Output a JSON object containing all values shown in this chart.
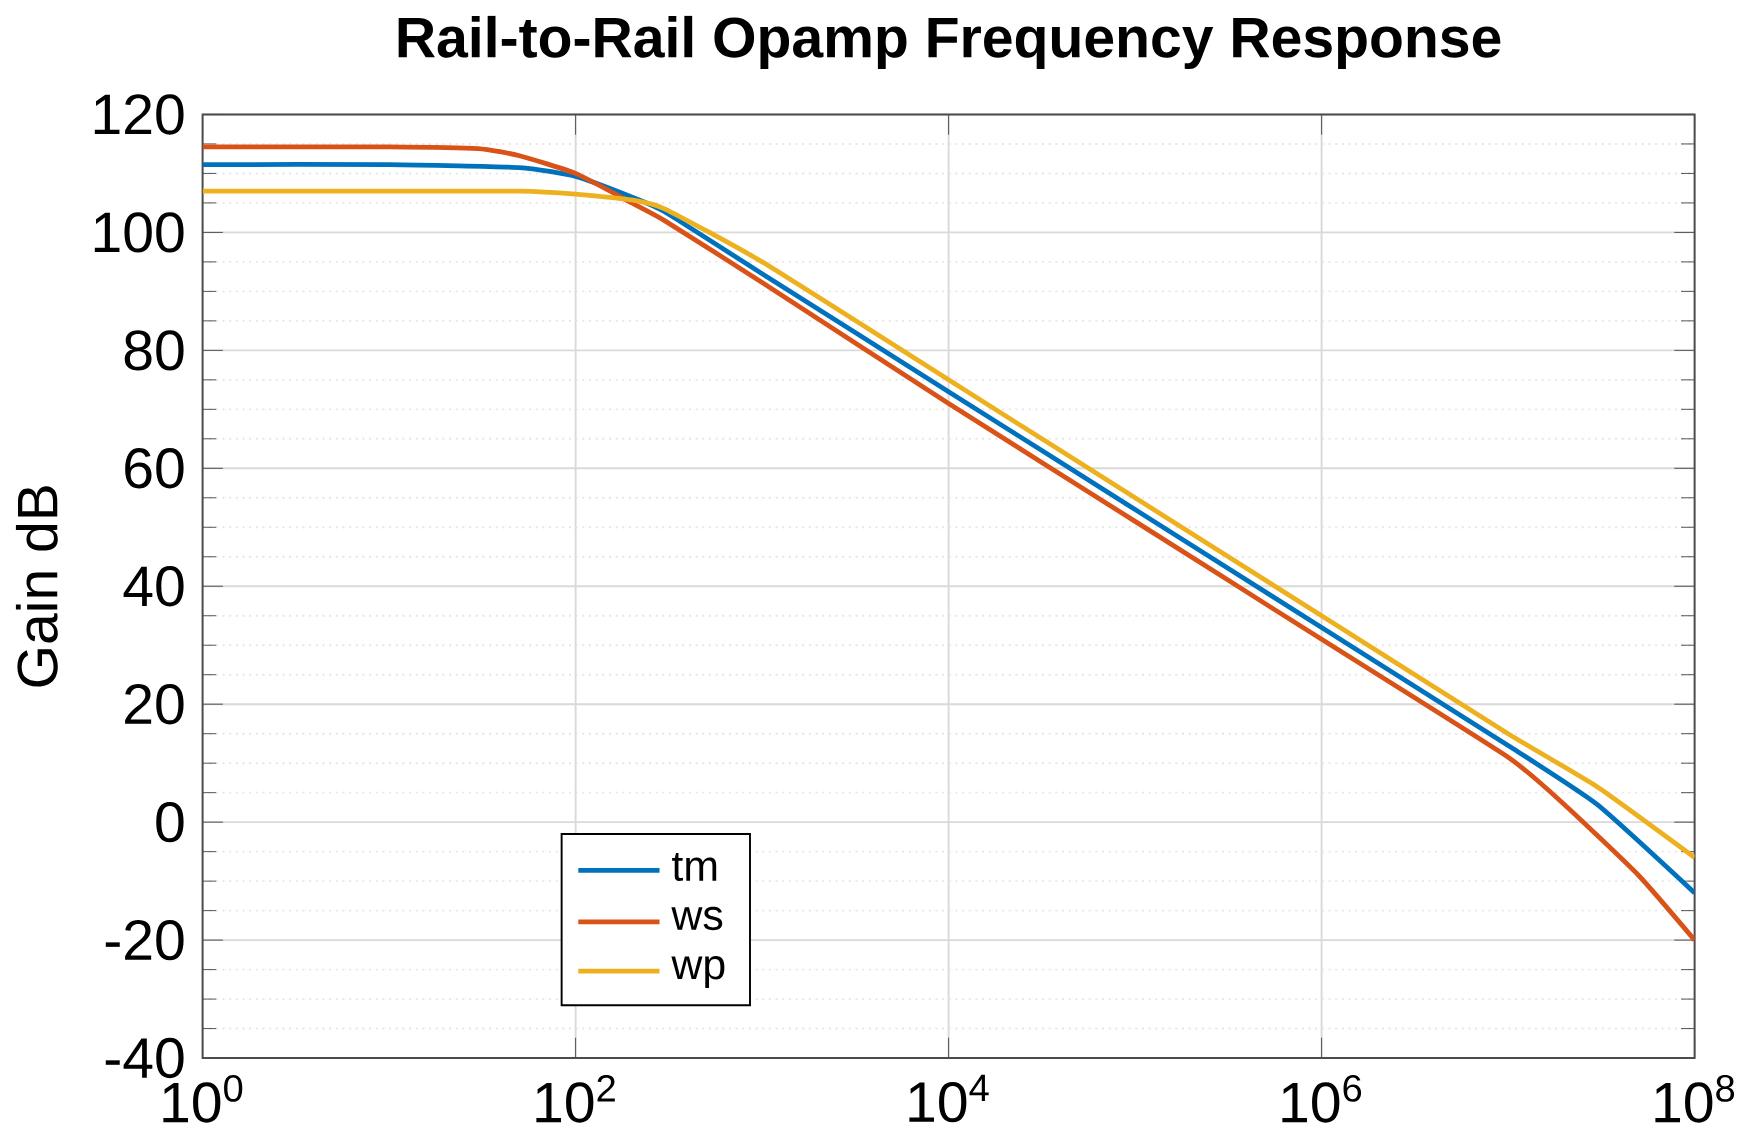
{
  "chart_data": {
    "type": "line",
    "title": "**Rail-to-Rail Opamp Frequency Response**",
    "ylabel": "Gain dB",
    "log": "x",
    "grid": true,
    "legend": "bottom left",
    "xlim": [
      1,
      100000000
    ],
    "ylim": [
      -40,
      120
    ],
    "xticks": [
      {
        "value": 1,
        "label": "10$^{0}$"
      },
      {
        "value": 100,
        "label": "10$^{2}$"
      },
      {
        "value": 10000,
        "label": "10$^{4}$"
      },
      {
        "value": 1000000,
        "label": "10$^{6}$"
      },
      {
        "value": 100000000,
        "label": "10$^{8}$"
      }
    ],
    "yticks": [
      -40,
      -20,
      0,
      20,
      40,
      60,
      80,
      100,
      120
    ],
    "series": [
      {
        "name": "tm",
        "color": "#0072bd",
        "x": [
          1,
          10,
          50,
          100,
          200,
          300,
          1000,
          10000,
          100000,
          1000000,
          10000000,
          30000000,
          100000000
        ],
        "values": [
          111.5,
          111.5,
          111,
          109.5,
          106,
          103.5,
          93,
          73,
          53,
          33,
          13,
          3,
          -12
        ]
      },
      {
        "name": "ws",
        "color": "#d95319",
        "x": [
          1,
          10,
          30,
          50,
          100,
          200,
          300,
          1000,
          10000,
          100000,
          1000000,
          10000000,
          20000000,
          50000000,
          100000000
        ],
        "values": [
          114.5,
          114.5,
          114.2,
          113,
          110,
          105,
          102,
          91.5,
          71,
          51,
          31,
          11,
          3,
          -9,
          -20
        ]
      },
      {
        "name": "wp",
        "color": "#edb120",
        "x": [
          1,
          10,
          50,
          100,
          200,
          300,
          1000,
          10000,
          100000,
          1000000,
          10000000,
          30000000,
          100000000
        ],
        "values": [
          107,
          107,
          107,
          106.5,
          105.5,
          104,
          95,
          75,
          55,
          35,
          15,
          6,
          -6
        ]
      }
    ]
  }
}
